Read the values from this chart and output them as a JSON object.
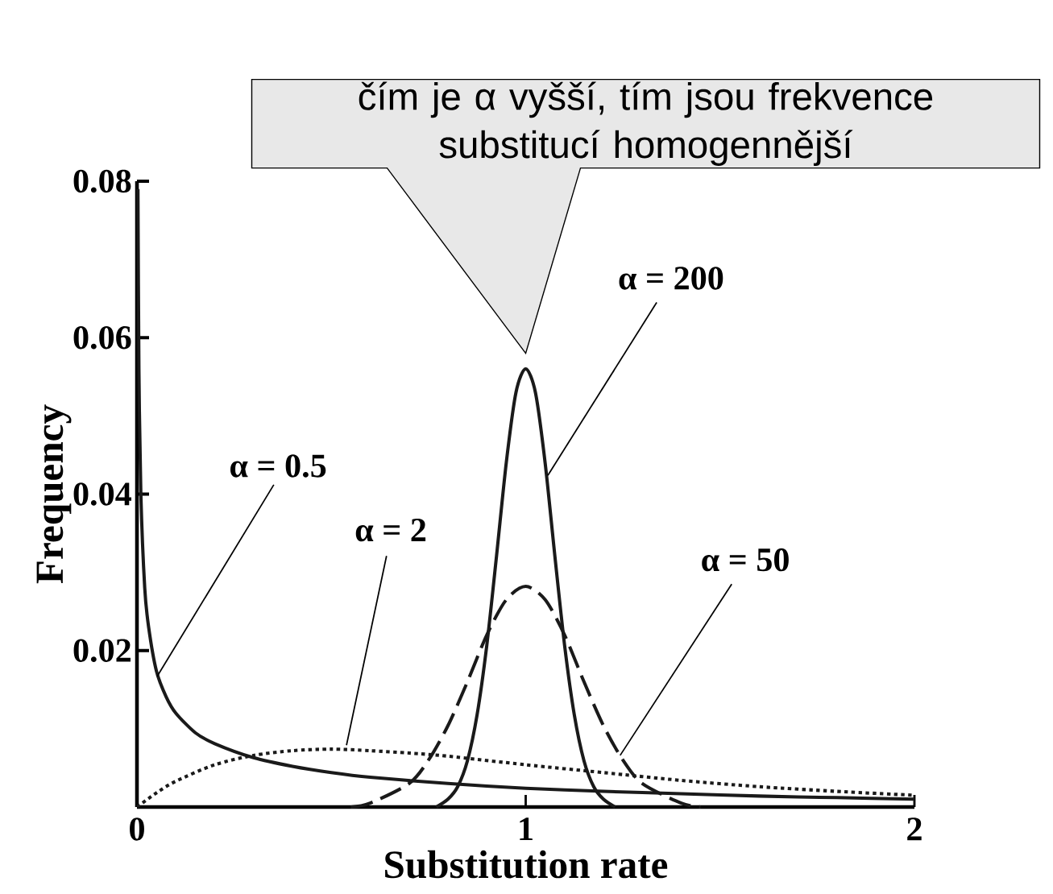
{
  "chart_data": {
    "type": "line",
    "xlabel": "Substitution rate",
    "ylabel": "Frequency",
    "xlim": [
      0,
      2
    ],
    "ylim": [
      0,
      0.08
    ],
    "xticks": [
      0,
      1,
      2
    ],
    "yticks": [
      0.02,
      0.04,
      0.06,
      0.08
    ],
    "grid": false,
    "marker": "none",
    "annotations": [
      "čím je α vyšší, tím jsou frekvence substitucí homogennější"
    ],
    "series": [
      {
        "name": "α = 0.5",
        "color": "#1a1a1a",
        "line_style": "solid",
        "x": [
          0.0025,
          0.005,
          0.01,
          0.02,
          0.03,
          0.05,
          0.075,
          0.1,
          0.15,
          0.2,
          0.3,
          0.4,
          0.5,
          0.6,
          0.8,
          1.0,
          1.2,
          1.4,
          1.6,
          1.8,
          2.0
        ],
        "values": [
          0.079,
          0.056,
          0.04,
          0.028,
          0.023,
          0.0174,
          0.0141,
          0.012,
          0.0095,
          0.0081,
          0.0063,
          0.0052,
          0.0044,
          0.0038,
          0.003,
          0.0024,
          0.002,
          0.0017,
          0.0014,
          0.0012,
          0.001
        ]
      },
      {
        "name": "α = 2",
        "color": "#1a1a1a",
        "line_style": "dotted",
        "x": [
          0,
          0.05,
          0.1,
          0.2,
          0.3,
          0.4,
          0.5,
          0.6,
          0.7,
          0.8,
          1.0,
          1.2,
          1.4,
          1.6,
          1.8,
          2.0
        ],
        "values": [
          0,
          0.0018,
          0.0033,
          0.0054,
          0.0066,
          0.0072,
          0.0074,
          0.0072,
          0.0069,
          0.0065,
          0.0054,
          0.0044,
          0.0034,
          0.0026,
          0.002,
          0.0015
        ]
      },
      {
        "name": "α = 50",
        "color": "#1a1a1a",
        "line_style": "dashed",
        "x": [
          0.55,
          0.6,
          0.7,
          0.75,
          0.8,
          0.85,
          0.9,
          0.95,
          1.0,
          1.05,
          1.1,
          1.15,
          1.2,
          1.25,
          1.3,
          1.4,
          1.45
        ],
        "values": [
          0,
          0.0005,
          0.003,
          0.006,
          0.0104,
          0.016,
          0.022,
          0.0265,
          0.0282,
          0.0265,
          0.022,
          0.016,
          0.0104,
          0.006,
          0.003,
          0.0005,
          0
        ]
      },
      {
        "name": "α = 200",
        "color": "#1a1a1a",
        "line_style": "solid",
        "x": [
          0.77,
          0.8,
          0.825,
          0.85,
          0.875,
          0.9,
          0.925,
          0.95,
          0.975,
          1.0,
          1.025,
          1.05,
          1.075,
          1.1,
          1.125,
          1.15,
          1.175,
          1.2,
          1.23
        ],
        "values": [
          0,
          0.001,
          0.0026,
          0.0059,
          0.0118,
          0.0207,
          0.0321,
          0.044,
          0.053,
          0.056,
          0.053,
          0.044,
          0.0321,
          0.0207,
          0.0118,
          0.0059,
          0.0026,
          0.001,
          0
        ]
      }
    ]
  }
}
